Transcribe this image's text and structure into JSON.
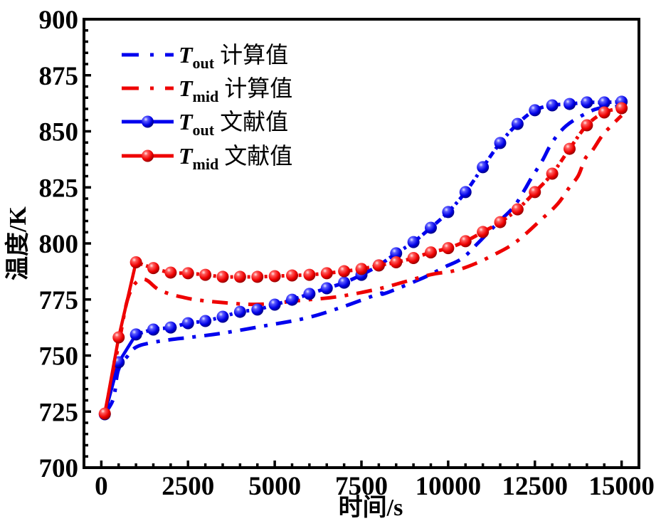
{
  "chart_data": {
    "type": "line",
    "title": "",
    "xlabel": "时间/s",
    "ylabel": "温度/K",
    "xlim": [
      -500,
      15500
    ],
    "ylim": [
      700,
      900
    ],
    "xticks": [
      0,
      2500,
      5000,
      7500,
      10000,
      12500,
      15000
    ],
    "xtick_labels": [
      "0",
      "2500",
      "5000",
      "7500",
      "10000",
      "12500",
      "15000"
    ],
    "xminor_step": 500,
    "yticks": [
      700,
      725,
      750,
      775,
      800,
      825,
      850,
      875,
      900
    ],
    "ytick_labels": [
      "700",
      "725",
      "750",
      "775",
      "800",
      "825",
      "850",
      "875",
      "900"
    ],
    "yminor_step": 5,
    "grid": false,
    "legend_position": "top-left",
    "series": [
      {
        "name": "T_out 计算值",
        "legend": {
          "symbol": "T",
          "sub": "out",
          "suffix": "计算值"
        },
        "color": "#0000ee",
        "style": "dash-dot",
        "marker": false,
        "x": [
          100,
          350,
          490,
          760,
          1000,
          1400,
          2000,
          2550,
          3500,
          4800,
          5900,
          6900,
          8000,
          8200,
          9300,
          9900,
          10400,
          10850,
          11150,
          11500,
          11900,
          12200,
          12400,
          12700,
          13000,
          13400,
          13950,
          14350,
          14800,
          15000
        ],
        "y": [
          724.1,
          730.8,
          743.5,
          749.8,
          753.7,
          755.6,
          757.1,
          758.1,
          760.0,
          763.5,
          766.7,
          771.4,
          777.5,
          777.8,
          784.8,
          789.5,
          793.3,
          800.0,
          804.8,
          810.2,
          816.5,
          823.8,
          829.2,
          836.5,
          845.1,
          852.4,
          857.8,
          860.3,
          861.0,
          861.5
        ]
      },
      {
        "name": "T_mid 计算值",
        "legend": {
          "symbol": "T",
          "sub": "mid",
          "suffix": "计算值"
        },
        "color": "#ee0000",
        "style": "dash-dot",
        "marker": false,
        "x": [
          100,
          500,
          800,
          1200,
          1700,
          2400,
          3050,
          4050,
          4750,
          5750,
          6800,
          7950,
          8750,
          9500,
          10200,
          10800,
          11350,
          11800,
          12200,
          12650,
          13150,
          13500,
          13750,
          13950,
          14150,
          14450,
          14700,
          14900,
          15000
        ],
        "y": [
          724.0,
          755.0,
          777.0,
          784.0,
          779.0,
          775.8,
          774.3,
          773.0,
          773.0,
          774.6,
          776.2,
          779.6,
          782.9,
          786.1,
          787.9,
          791.1,
          795.2,
          799.0,
          803.8,
          810.2,
          817.5,
          825.1,
          830.2,
          837.8,
          841.3,
          848.3,
          852.4,
          855.6,
          857.0
        ]
      },
      {
        "name": "T_out 文献值",
        "legend": {
          "symbol": "T",
          "sub": "out",
          "suffix": "文献值"
        },
        "color": "#0000ee",
        "style": "dash-dot-solid",
        "marker": true,
        "x": [
          100,
          500,
          1000,
          1500,
          2000,
          2500,
          3000,
          3500,
          4000,
          4500,
          5000,
          5500,
          6000,
          6500,
          7000,
          7500,
          8000,
          8500,
          9000,
          9500,
          10000,
          10500,
          11000,
          11500,
          12000,
          12500,
          13000,
          13500,
          14000,
          14500,
          15000
        ],
        "y": [
          723.8,
          747.0,
          759.4,
          761.6,
          762.5,
          764.4,
          765.4,
          767.3,
          769.5,
          770.5,
          772.7,
          774.9,
          777.5,
          780.0,
          782.5,
          786.0,
          790.2,
          795.6,
          800.6,
          807.0,
          814.0,
          822.9,
          834.0,
          844.8,
          853.3,
          859.4,
          861.6,
          862.2,
          862.9,
          862.9,
          863.2
        ]
      },
      {
        "name": "T_mid 文献值",
        "legend": {
          "symbol": "T",
          "sub": "mid",
          "suffix": "文献值"
        },
        "color": "#ee0000",
        "style": "dash-dot-solid",
        "marker": true,
        "x": [
          100,
          500,
          1000,
          1500,
          2000,
          2500,
          3000,
          3500,
          4000,
          4500,
          5000,
          5500,
          6000,
          6500,
          7000,
          7500,
          8000,
          8500,
          9000,
          9500,
          10000,
          10500,
          11000,
          11500,
          12000,
          12500,
          13000,
          13500,
          14000,
          14500,
          15000
        ],
        "y": [
          724.1,
          758.1,
          791.6,
          789.0,
          787.0,
          786.7,
          786.0,
          785.1,
          785.1,
          785.1,
          785.4,
          785.7,
          786.0,
          786.7,
          787.6,
          788.6,
          790.2,
          791.6,
          793.5,
          796.0,
          797.9,
          801.0,
          805.1,
          809.5,
          815.2,
          822.9,
          831.1,
          842.2,
          852.7,
          858.4,
          860.3
        ]
      }
    ]
  }
}
